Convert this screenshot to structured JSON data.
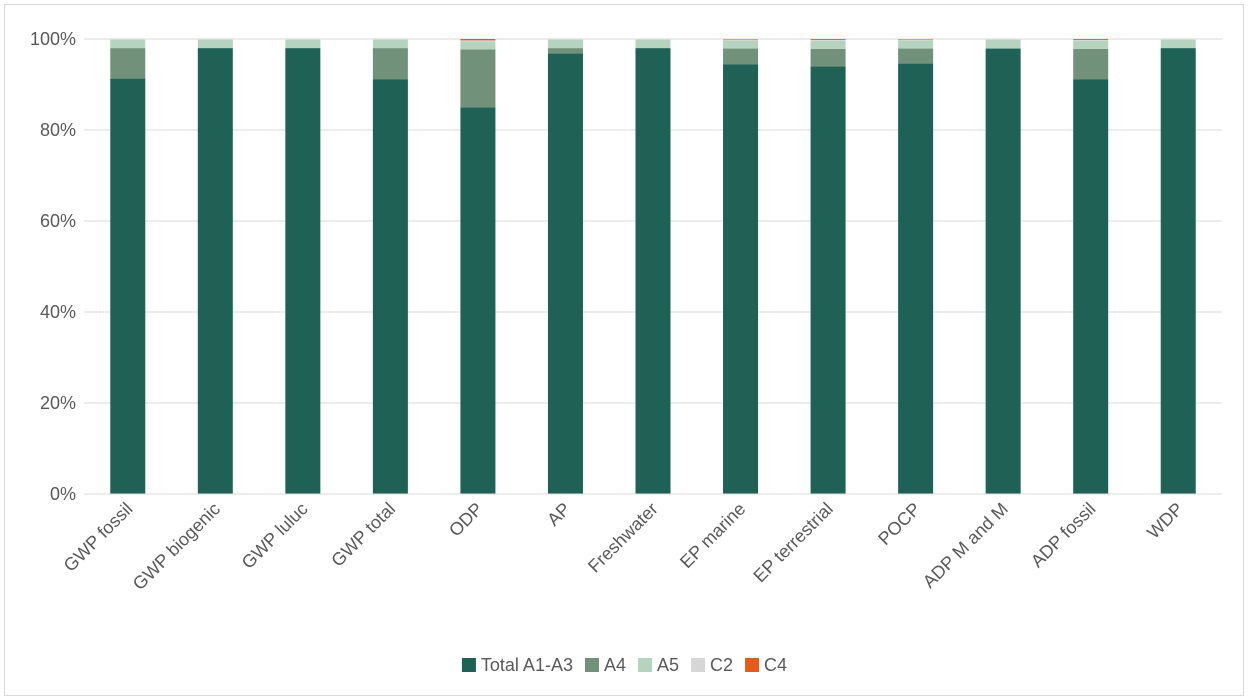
{
  "chart_data": {
    "type": "bar",
    "stacked": "percent",
    "categories": [
      "GWP fossil",
      "GWP biogenic",
      "GWP luluc",
      "GWP total",
      "ODP",
      "AP",
      "Freshwater",
      "EP marine",
      "EP terrestrial",
      "POCP",
      "ADP M and M",
      "ADP fossil",
      "WDP"
    ],
    "series": [
      {
        "name": "Total A1-A3",
        "color": "#1f6154",
        "values": [
          91.3,
          98.0,
          98.0,
          91.1,
          85.0,
          96.8,
          98.0,
          94.4,
          94.0,
          94.6,
          97.9,
          91.1,
          98.0
        ]
      },
      {
        "name": "A4",
        "color": "#72917a",
        "values": [
          6.7,
          0.0,
          0.0,
          6.9,
          12.7,
          1.2,
          0.0,
          3.5,
          3.8,
          3.3,
          0.0,
          6.7,
          0.0
        ]
      },
      {
        "name": "A5",
        "color": "#b5d3be",
        "values": [
          1.8,
          1.8,
          1.8,
          1.8,
          1.8,
          1.8,
          1.8,
          1.8,
          1.8,
          1.8,
          1.9,
          1.8,
          1.8
        ]
      },
      {
        "name": "C2",
        "color": "#d6d6d6",
        "values": [
          0.2,
          0.2,
          0.2,
          0.2,
          0.2,
          0.2,
          0.2,
          0.2,
          0.2,
          0.2,
          0.2,
          0.2,
          0.2
        ]
      },
      {
        "name": "C4",
        "color": "#e55b1d",
        "values": [
          0.0,
          0.0,
          0.0,
          0.0,
          0.3,
          0.0,
          0.0,
          0.1,
          0.2,
          0.1,
          0.0,
          0.2,
          0.0
        ]
      }
    ],
    "ylim": [
      0,
      100
    ],
    "yticks": [
      0,
      20,
      40,
      60,
      80,
      100
    ],
    "ytick_labels": [
      "0%",
      "20%",
      "40%",
      "60%",
      "80%",
      "100%"
    ],
    "grid": true,
    "legend_position": "bottom",
    "title": "",
    "xlabel": "",
    "ylabel": ""
  }
}
